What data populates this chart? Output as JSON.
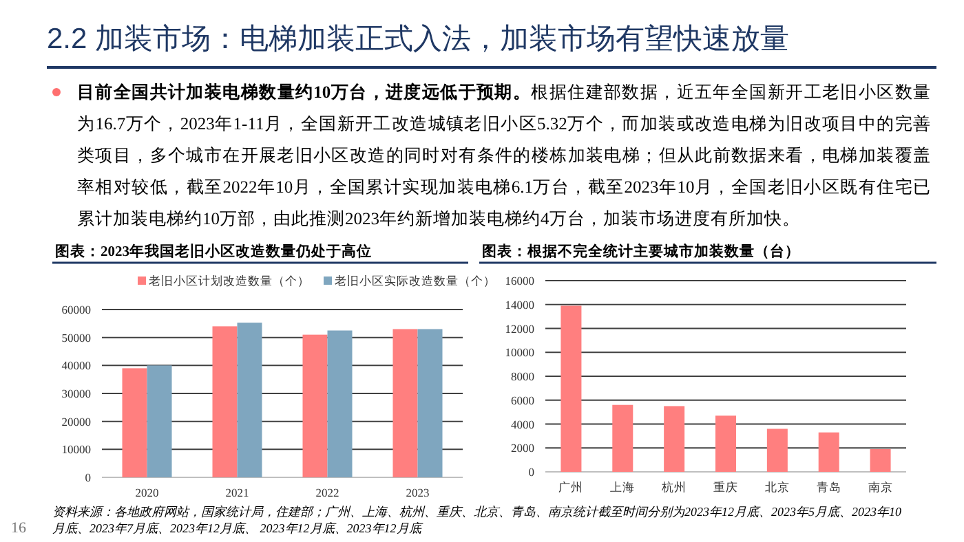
{
  "chart_data": [
    {
      "type": "other",
      "title": "2.2 加装市场：电梯加装正式入法，加装市场有望快速放量",
      "annotations": [
        "目前全国共计加装电梯数量约10万台，进度远低于预期。",
        "根据住建部数据，近五年全国新开工老旧小区数量为16.7万个，2023年1-11月，全国新开工改造城镇老旧小区5.32万个，而加装或改造电梯为旧改项目中的完善类项目，多个城市在开展老旧小区改造的同时对有条件的楼栋加装电梯；但从此前数据来看，电梯加装覆盖率相对较低，截至2022年10月，全国累计实现加装电梯6.1万台，截至2023年10月，全国老旧小区既有住宅已累计加装电梯约10万部，由此推测2023年约新增加装电梯约4万台，加装市场进度有所加快。",
        "16"
      ]
    },
    {
      "type": "bar",
      "title": "图表：2023年我国老旧小区改造数量仍处于高位",
      "categories": [
        "2020",
        "2021",
        "2022",
        "2023"
      ],
      "series": [
        {
          "name": "老旧小区计划改造数量（个）",
          "color": "#ff7f7f",
          "values": [
            39000,
            54000,
            51000,
            53000
          ]
        },
        {
          "name": "老旧小区实际改造数量（个）",
          "color": "#7fa6bf",
          "values": [
            40000,
            55300,
            52500,
            53000
          ]
        }
      ],
      "ylim": [
        0,
        60000
      ],
      "yticks": [
        0,
        10000,
        20000,
        30000,
        40000,
        50000,
        60000
      ],
      "grid": "y",
      "legend": "top",
      "annotations": [
        "资料来源：各地政府网站，国家统计局，住建部；广州、上海、杭州、重庆、北京、青岛、南京统计截至时间分别为2023年12月底、2023年5月底、2023年10月底、2023年7月底、2023年12月底、 2023年12月底、2023年12月底"
      ]
    },
    {
      "type": "bar",
      "title": "图表：根据不完全统计主要城市加装数量（台）",
      "categories": [
        "广州",
        "上海",
        "杭州",
        "重庆",
        "北京",
        "青岛",
        "南京"
      ],
      "values": [
        13900,
        5600,
        5500,
        4700,
        3600,
        3300,
        1900
      ],
      "color": "#ff7f7f",
      "ylim": [
        0,
        16000
      ],
      "yticks": [
        0,
        2000,
        4000,
        6000,
        8000,
        10000,
        12000,
        14000,
        16000
      ],
      "grid": "y"
    }
  ]
}
